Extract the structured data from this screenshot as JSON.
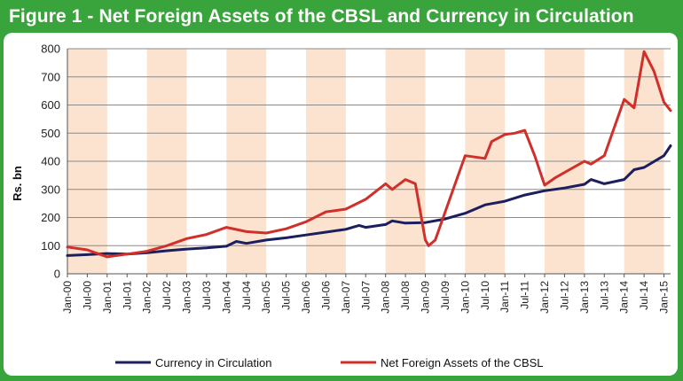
{
  "title": "Figure 1 - Net Foreign Assets of the CBSL and Currency in Circulation",
  "chart_data": {
    "type": "line",
    "title": "Figure 1 - Net Foreign Assets of the CBSL and Currency in Circulation",
    "ylabel": "Rs. bn",
    "xlabel": "",
    "ylim": [
      0,
      800
    ],
    "yticks": [
      0,
      100,
      200,
      300,
      400,
      500,
      600,
      700,
      800
    ],
    "xlim": [
      "2000-01",
      "2015-03"
    ],
    "xtick_labels": [
      "Jan-00",
      "Jul-00",
      "Jan-01",
      "Jul-01",
      "Jan-02",
      "Jul-02",
      "Jan-03",
      "Jul-03",
      "Jan-04",
      "Jul-04",
      "Jan-05",
      "Jul-05",
      "Jan-06",
      "Jul-06",
      "Jan-07",
      "Jul-07",
      "Jan-08",
      "Jul-08",
      "Jan-09",
      "Jul-09",
      "Jan-10",
      "Jul-10",
      "Jan-11",
      "Jul-11",
      "Jan-12",
      "Jul-12",
      "Jan-13",
      "Jul-13",
      "Jan-14",
      "Jul-14",
      "Jan-15"
    ],
    "shaded_years": [
      2000,
      2002,
      2004,
      2006,
      2008,
      2010,
      2012,
      2014
    ],
    "grid": true,
    "legend_position": "bottom",
    "series": [
      {
        "name": "Currency in Circulation",
        "color": "#1c1f5e",
        "x": [
          "2000-01",
          "2000-07",
          "2001-01",
          "2001-07",
          "2002-01",
          "2002-07",
          "2003-01",
          "2003-07",
          "2004-01",
          "2004-04",
          "2004-07",
          "2005-01",
          "2005-07",
          "2006-01",
          "2006-07",
          "2007-01",
          "2007-05",
          "2007-07",
          "2008-01",
          "2008-03",
          "2008-07",
          "2009-01",
          "2009-07",
          "2010-01",
          "2010-07",
          "2011-01",
          "2011-07",
          "2012-01",
          "2012-07",
          "2013-01",
          "2013-03",
          "2013-07",
          "2014-01",
          "2014-04",
          "2014-07",
          "2015-01",
          "2015-03"
        ],
        "y": [
          65,
          68,
          72,
          70,
          75,
          82,
          88,
          92,
          98,
          115,
          108,
          120,
          128,
          138,
          148,
          158,
          172,
          165,
          175,
          188,
          180,
          182,
          195,
          215,
          245,
          258,
          280,
          295,
          305,
          318,
          335,
          320,
          335,
          370,
          378,
          420,
          455
        ]
      },
      {
        "name": "Net Foreign Assets of the CBSL",
        "color": "#d12f2a",
        "x": [
          "2000-01",
          "2000-07",
          "2001-01",
          "2001-07",
          "2002-01",
          "2002-07",
          "2003-01",
          "2003-07",
          "2004-01",
          "2004-07",
          "2005-01",
          "2005-07",
          "2006-01",
          "2006-07",
          "2007-01",
          "2007-07",
          "2008-01",
          "2008-03",
          "2008-07",
          "2008-10",
          "2009-01",
          "2009-02",
          "2009-04",
          "2009-07",
          "2010-01",
          "2010-07",
          "2010-09",
          "2011-01",
          "2011-04",
          "2011-07",
          "2011-10",
          "2012-01",
          "2012-04",
          "2012-07",
          "2013-01",
          "2013-03",
          "2013-07",
          "2014-01",
          "2014-04",
          "2014-07",
          "2014-10",
          "2015-01",
          "2015-03"
        ],
        "y": [
          95,
          85,
          60,
          70,
          80,
          100,
          125,
          140,
          165,
          150,
          145,
          160,
          185,
          220,
          230,
          265,
          320,
          300,
          335,
          320,
          120,
          100,
          120,
          220,
          420,
          410,
          470,
          495,
          500,
          510,
          420,
          315,
          340,
          360,
          400,
          390,
          420,
          620,
          590,
          790,
          720,
          610,
          580
        ]
      }
    ]
  }
}
